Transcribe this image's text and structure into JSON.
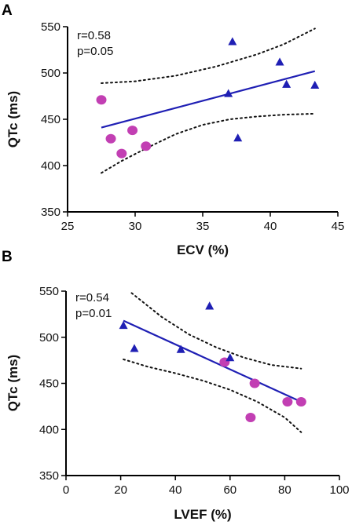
{
  "chart_data": [
    {
      "panel": "A",
      "type": "scatter",
      "xlabel": "ECV (%)",
      "ylabel": "QTc (ms)",
      "xlim": [
        25,
        45
      ],
      "ylim": [
        350,
        550
      ],
      "xticks": [
        25,
        30,
        35,
        40,
        45
      ],
      "yticks": [
        350,
        400,
        450,
        500,
        550
      ],
      "stats": [
        "r=0.58",
        "p=0.05"
      ],
      "series": [
        {
          "marker": "circle",
          "color": "#c23fb3",
          "points": [
            [
              27.5,
              471
            ],
            [
              28.2,
              429
            ],
            [
              29,
              413
            ],
            [
              29.8,
              438
            ],
            [
              30.8,
              421
            ]
          ]
        },
        {
          "marker": "triangle",
          "color": "#1f1fb4",
          "points": [
            [
              37.2,
              534
            ],
            [
              40.7,
              512
            ],
            [
              41.2,
              488
            ],
            [
              43.3,
              487
            ],
            [
              36.9,
              478
            ],
            [
              37.6,
              430
            ]
          ]
        }
      ],
      "fit_line": [
        [
          27.5,
          441
        ],
        [
          43.3,
          502
        ]
      ],
      "ci_upper": [
        [
          27.5,
          489
        ],
        [
          30,
          491
        ],
        [
          33,
          497
        ],
        [
          36,
          507
        ],
        [
          39,
          520
        ],
        [
          41,
          531
        ],
        [
          43.3,
          548
        ]
      ],
      "ci_lower": [
        [
          27.5,
          392
        ],
        [
          29,
          405
        ],
        [
          31,
          420
        ],
        [
          33,
          434
        ],
        [
          35,
          444
        ],
        [
          37,
          450
        ],
        [
          39,
          453
        ],
        [
          41,
          455
        ],
        [
          43.3,
          456
        ]
      ]
    },
    {
      "panel": "B",
      "type": "scatter",
      "xlabel": "LVEF (%)",
      "ylabel": "QTc (ms)",
      "xlim": [
        0,
        100
      ],
      "ylim": [
        350,
        550
      ],
      "xticks": [
        0,
        20,
        40,
        60,
        80,
        100
      ],
      "yticks": [
        350,
        400,
        450,
        500,
        550
      ],
      "stats": [
        "r=0.54",
        "p=0.01"
      ],
      "series": [
        {
          "marker": "circle",
          "color": "#c23fb3",
          "points": [
            [
              58,
              473
            ],
            [
              69,
              450
            ],
            [
              81,
              430
            ],
            [
              86,
              430
            ],
            [
              67.5,
              413
            ]
          ]
        },
        {
          "marker": "triangle",
          "color": "#1f1fb4",
          "points": [
            [
              21,
              513
            ],
            [
              25,
              488
            ],
            [
              42,
              487
            ],
            [
              52.5,
              534
            ],
            [
              60,
              478
            ]
          ]
        }
      ],
      "fit_line": [
        [
          21,
          518
        ],
        [
          86,
          430
        ]
      ],
      "ci_upper": [
        [
          24,
          548
        ],
        [
          35,
          522
        ],
        [
          45,
          503
        ],
        [
          55,
          489
        ],
        [
          65,
          478
        ],
        [
          75,
          470
        ],
        [
          86,
          466
        ]
      ],
      "ci_lower": [
        [
          21,
          476
        ],
        [
          30,
          468
        ],
        [
          40,
          461
        ],
        [
          50,
          453
        ],
        [
          60,
          443
        ],
        [
          70,
          430
        ],
        [
          80,
          413
        ],
        [
          86,
          397
        ]
      ]
    }
  ]
}
